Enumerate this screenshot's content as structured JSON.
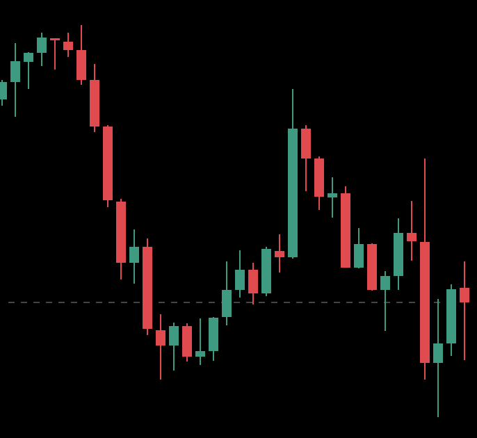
{
  "chart_data": {
    "type": "candlestick",
    "ylim": [
      0,
      630
    ],
    "up_color": "#3e9a80",
    "down_color": "#e04b4f",
    "reference_line": {
      "value": 195,
      "style": "dashed",
      "color": "#8a8a8a"
    },
    "open": [
      487,
      512,
      541,
      554,
      575,
      570,
      558,
      515,
      448,
      340,
      252,
      275,
      155,
      133,
      161,
      117,
      125,
      174,
      213,
      242,
      208,
      269,
      260,
      445,
      402,
      346,
      352,
      245,
      279,
      213,
      233,
      295,
      282,
      108,
      136,
      216
    ],
    "high": [
      515,
      568,
      555,
      583,
      575,
      583,
      594,
      538,
      450,
      344,
      300,
      287,
      178,
      166,
      165,
      172,
      174,
      254,
      270,
      252,
      275,
      293,
      502,
      450,
      405,
      375,
      362,
      302,
      280,
      240,
      316,
      341,
      402,
      200,
      221,
      254
    ],
    "low": [
      478,
      462,
      502,
      535,
      530,
      548,
      508,
      440,
      332,
      228,
      222,
      148,
      84,
      97,
      110,
      105,
      111,
      162,
      202,
      192,
      204,
      238,
      258,
      355,
      328,
      317,
      245,
      244,
      212,
      154,
      213,
      255,
      84,
      30,
      118,
      112
    ],
    "close": [
      512,
      542,
      554,
      576,
      572,
      558,
      515,
      448,
      342,
      252,
      275,
      157,
      133,
      161,
      117,
      125,
      173,
      213,
      242,
      208,
      272,
      260,
      445,
      402,
      347,
      352,
      245,
      279,
      213,
      233,
      295,
      283,
      108,
      136,
      214,
      195
    ]
  }
}
